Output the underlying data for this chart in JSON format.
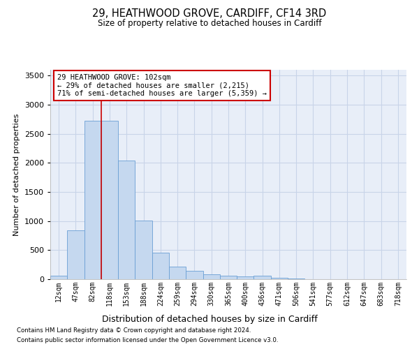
{
  "title": "29, HEATHWOOD GROVE, CARDIFF, CF14 3RD",
  "subtitle": "Size of property relative to detached houses in Cardiff",
  "xlabel": "Distribution of detached houses by size in Cardiff",
  "ylabel": "Number of detached properties",
  "categories": [
    "12sqm",
    "47sqm",
    "82sqm",
    "118sqm",
    "153sqm",
    "188sqm",
    "224sqm",
    "259sqm",
    "294sqm",
    "330sqm",
    "365sqm",
    "400sqm",
    "436sqm",
    "471sqm",
    "506sqm",
    "541sqm",
    "577sqm",
    "612sqm",
    "647sqm",
    "683sqm",
    "718sqm"
  ],
  "values": [
    60,
    840,
    2720,
    2720,
    2040,
    1010,
    460,
    220,
    140,
    80,
    60,
    50,
    55,
    30,
    10,
    5,
    3,
    2,
    1,
    1,
    1
  ],
  "bar_color": "#c5d8ef",
  "bar_edge_color": "#6a9fd4",
  "red_line_color": "#cc0000",
  "annotation_text": "29 HEATHWOOD GROVE: 102sqm\n← 29% of detached houses are smaller (2,215)\n71% of semi-detached houses are larger (5,359) →",
  "annotation_box_color": "#ffffff",
  "annotation_box_edge": "#cc0000",
  "grid_color": "#c8d4e8",
  "background_color": "#e8eef8",
  "footer1": "Contains HM Land Registry data © Crown copyright and database right 2024.",
  "footer2": "Contains public sector information licensed under the Open Government Licence v3.0.",
  "ylim": [
    0,
    3600
  ],
  "yticks": [
    0,
    500,
    1000,
    1500,
    2000,
    2500,
    3000,
    3500
  ]
}
